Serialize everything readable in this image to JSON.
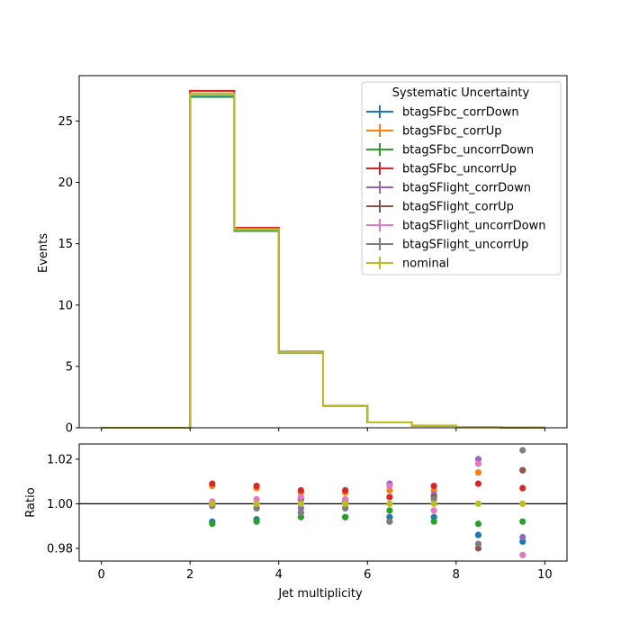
{
  "chart_data": [
    {
      "type": "step",
      "panel": "main",
      "xlabel": "",
      "ylabel": "Events",
      "xlim": [
        -0.5,
        10.5
      ],
      "ylim": [
        0,
        28.7
      ],
      "yticks": [
        "0",
        "5",
        "10",
        "15",
        "20",
        "25"
      ],
      "bin_edges": [
        0,
        1,
        2,
        3,
        4,
        5,
        6,
        7,
        8,
        9,
        10
      ],
      "legend": {
        "title": "Systematic Uncertainty",
        "placement": "top-right"
      },
      "series": [
        {
          "name": "btagSFbc_corrDown",
          "color": "#1f77b4",
          "values": [
            0,
            0,
            27.0,
            16.05,
            6.12,
            1.76,
            0.44,
            0.17,
            0.07,
            0.03
          ]
        },
        {
          "name": "btagSFbc_corrUp",
          "color": "#ff7f0e",
          "values": [
            0,
            0,
            27.43,
            16.28,
            6.18,
            1.78,
            0.44,
            0.17,
            0.07,
            0.03
          ]
        },
        {
          "name": "btagSFbc_uncorrDown",
          "color": "#2ca02c",
          "values": [
            0,
            0,
            26.97,
            16.04,
            6.11,
            1.76,
            0.44,
            0.17,
            0.07,
            0.03
          ]
        },
        {
          "name": "btagSFbc_uncorrUp",
          "color": "#d62728",
          "values": [
            0,
            0,
            27.46,
            16.3,
            6.2,
            1.78,
            0.44,
            0.17,
            0.07,
            0.03
          ]
        },
        {
          "name": "btagSFlight_corrDown",
          "color": "#9467bd",
          "values": [
            0,
            0,
            27.2,
            16.16,
            6.14,
            1.77,
            0.44,
            0.17,
            0.07,
            0.03
          ]
        },
        {
          "name": "btagSFlight_corrUp",
          "color": "#8c564b",
          "values": [
            0,
            0,
            27.2,
            16.2,
            6.16,
            1.77,
            0.44,
            0.17,
            0.07,
            0.03
          ]
        },
        {
          "name": "btagSFlight_uncorrDown",
          "color": "#e377c2",
          "values": [
            0,
            0,
            27.23,
            16.2,
            6.16,
            1.77,
            0.44,
            0.17,
            0.07,
            0.03
          ]
        },
        {
          "name": "btagSFlight_uncorrUp",
          "color": "#7f7f7f",
          "values": [
            0,
            0,
            27.18,
            16.12,
            6.13,
            1.76,
            0.44,
            0.17,
            0.07,
            0.03
          ]
        },
        {
          "name": "nominal",
          "color": "#bcbd22",
          "values": [
            0,
            0,
            27.2,
            16.16,
            6.15,
            1.77,
            0.44,
            0.17,
            0.07,
            0.03
          ]
        }
      ]
    },
    {
      "type": "scatter",
      "panel": "ratio",
      "xlabel": "Jet multiplicity",
      "ylabel": "Ratio",
      "xlim": [
        -0.5,
        10.5
      ],
      "ylim": [
        0.9743,
        1.0268
      ],
      "xticks": [
        "0",
        "2",
        "4",
        "6",
        "8",
        "10"
      ],
      "yticks": [
        "0.98",
        "1.00",
        "1.02"
      ],
      "reference_line": 1.0,
      "x": [
        2.5,
        3.5,
        4.5,
        5.5,
        6.5,
        7.5,
        8.5,
        9.5
      ],
      "series": [
        {
          "color": "#1f77b4",
          "values": [
            0.992,
            0.993,
            0.996,
            0.994,
            0.994,
            0.994,
            0.986,
            0.983
          ]
        },
        {
          "color": "#ff7f0e",
          "values": [
            1.008,
            1.007,
            1.005,
            1.005,
            1.006,
            1.006,
            1.014,
            1.015
          ]
        },
        {
          "color": "#2ca02c",
          "values": [
            0.991,
            0.992,
            0.994,
            0.994,
            0.997,
            0.992,
            0.991,
            0.992
          ]
        },
        {
          "color": "#d62728",
          "values": [
            1.009,
            1.008,
            1.006,
            1.006,
            1.003,
            1.008,
            1.009,
            1.007
          ]
        },
        {
          "color": "#9467bd",
          "values": [
            1.0,
            0.998,
            0.998,
            0.998,
            1.009,
            1.004,
            1.02,
            0.985
          ]
        },
        {
          "color": "#8c564b",
          "values": [
            1.0,
            0.998,
            1.002,
            1.001,
            0.992,
            1.003,
            0.98,
            1.015
          ]
        },
        {
          "color": "#e377c2",
          "values": [
            1.001,
            1.002,
            1.003,
            1.002,
            1.008,
            0.997,
            1.018,
            0.977
          ]
        },
        {
          "color": "#7f7f7f",
          "values": [
            0.999,
            0.998,
            0.996,
            0.998,
            0.992,
            1.002,
            0.982,
            1.024
          ]
        },
        {
          "color": "#bcbd22",
          "values": [
            1.0,
            1.0,
            1.0,
            1.0,
            1.0,
            1.0,
            1.0,
            1.0
          ]
        }
      ]
    }
  ]
}
